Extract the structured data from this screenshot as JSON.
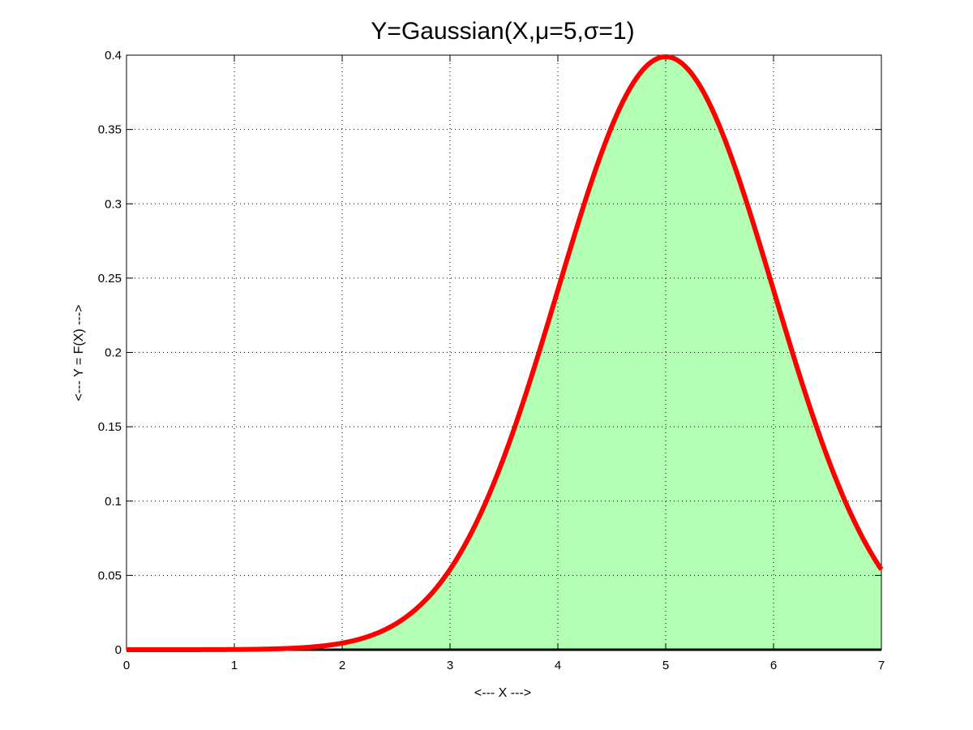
{
  "chart_data": {
    "type": "area",
    "title": "Y=Gaussian(X,μ=5,σ=1)",
    "xlabel": "<--- X --->",
    "ylabel": "<--- Y = F(X) --->",
    "xlim": [
      0,
      7
    ],
    "ylim": [
      0,
      0.4
    ],
    "xticks": [
      0,
      1,
      2,
      3,
      4,
      5,
      6,
      7
    ],
    "xtick_labels": [
      "0",
      "1",
      "2",
      "3",
      "4",
      "5",
      "6",
      "7"
    ],
    "yticks": [
      0,
      0.05,
      0.1,
      0.15,
      0.2,
      0.25,
      0.3,
      0.35,
      0.4
    ],
    "ytick_labels": [
      "0",
      "0.05",
      "0.1",
      "0.15",
      "0.2",
      "0.25",
      "0.3",
      "0.35",
      "0.4"
    ],
    "grid": true,
    "series": [
      {
        "x": [
          0,
          0.5,
          1,
          1.5,
          2,
          2.5,
          3,
          3.5,
          4,
          4.5,
          5,
          5.5,
          6,
          6.5,
          7
        ],
        "values": [
          1.5e-06,
          1.6e-05,
          0.00013,
          0.00087,
          0.0044,
          0.0175,
          0.054,
          0.1295,
          0.242,
          0.352,
          0.399,
          0.352,
          0.242,
          0.1295,
          0.054
        ],
        "mu": 5,
        "sigma": 1,
        "line_color": "#ff0000",
        "fill_color": "#b3ffb3",
        "shaded_from_x": 2,
        "shaded_to_x": 7
      }
    ]
  }
}
